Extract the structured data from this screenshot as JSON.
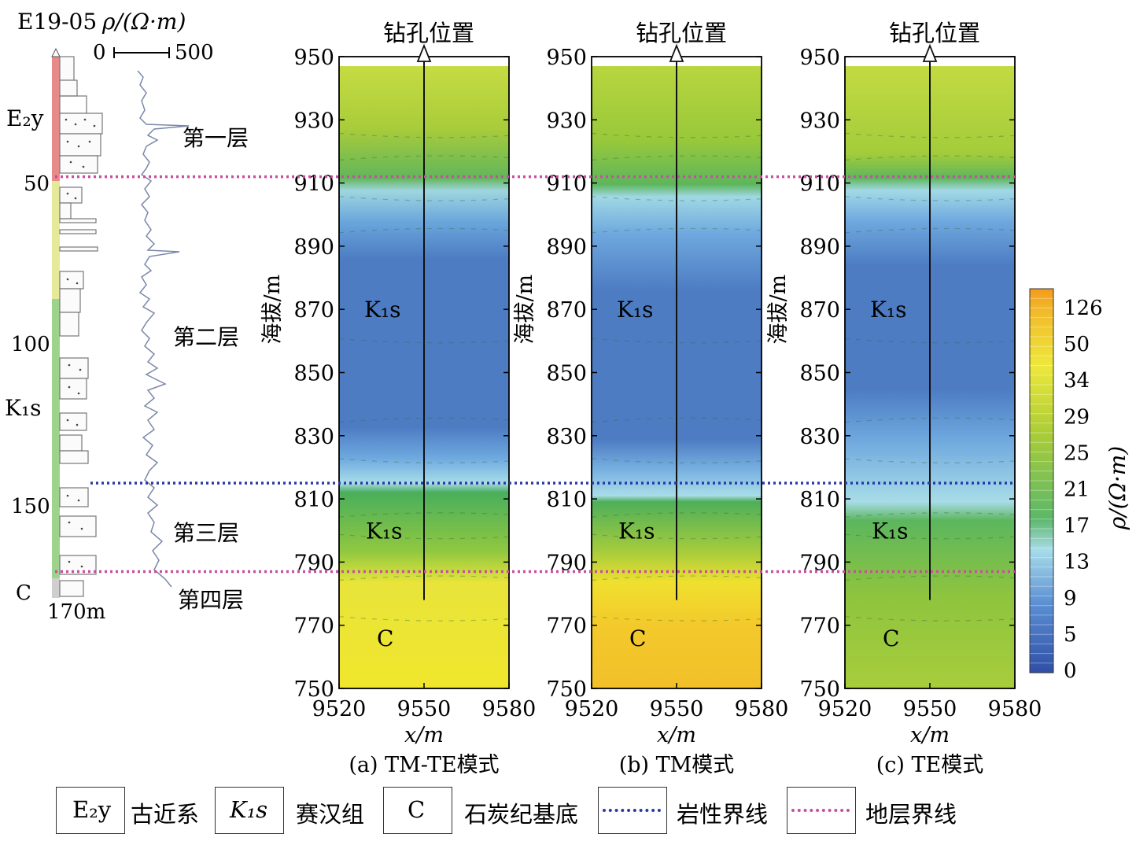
{
  "well": {
    "id": "E19-05",
    "rho_label": "ρ/(Ω·m)",
    "scale_min": "0",
    "scale_max": "500",
    "depth_ticks": [
      "50",
      "100",
      "150"
    ],
    "bottom_depth": "170m",
    "strata": [
      "E₂y",
      "K₁s",
      "C"
    ],
    "layers": [
      "第一层",
      "第二层",
      "第三层",
      "第四层"
    ]
  },
  "panels": [
    {
      "caption": "(a) TM-TE模式",
      "borehole_label": "钻孔位置",
      "unit_labels": [
        "K₁s",
        "K₁s",
        "C"
      ]
    },
    {
      "caption": "(b) TM模式",
      "borehole_label": "钻孔位置",
      "unit_labels": [
        "K₁s",
        "K₁s",
        "C"
      ]
    },
    {
      "caption": "(c) TE模式",
      "borehole_label": "钻孔位置",
      "unit_labels": [
        "K₁s",
        "K₁s",
        "C"
      ]
    }
  ],
  "axes": {
    "ylabel": "海拔/m",
    "xlabel": "x/m",
    "yticks": [
      "950",
      "930",
      "910",
      "890",
      "870",
      "850",
      "830",
      "810",
      "790",
      "770",
      "750"
    ],
    "xticks": [
      "9520",
      "9550",
      "9580"
    ],
    "ylim": [
      750,
      950
    ],
    "xlim": [
      9520,
      9580
    ]
  },
  "colorbar": {
    "label": "ρ/(Ω·m)",
    "ticks": [
      "126",
      "50",
      "34",
      "29",
      "25",
      "21",
      "17",
      "13",
      "9",
      "5",
      "0"
    ]
  },
  "boundaries": {
    "lithologic_elevation": 815,
    "stratigraphic_elevations": [
      912,
      787
    ],
    "borehole_x": 9550,
    "borehole_bottom": 778
  },
  "legend": {
    "e2y_symbol": "E₂y",
    "e2y_text": "古近系",
    "k1s_symbol": "K₁s",
    "k1s_text": "赛汉组",
    "c_symbol": "C",
    "c_text": "石炭纪基底",
    "lith_text": "岩性界线",
    "strat_text": "地层界线"
  },
  "colors": {
    "lithologic_line": "#2b3aa8",
    "stratigraphic_line": "#c74fa0",
    "high_res_yellow": "#f0e52c",
    "low_res_blue": "#4c74bd"
  }
}
